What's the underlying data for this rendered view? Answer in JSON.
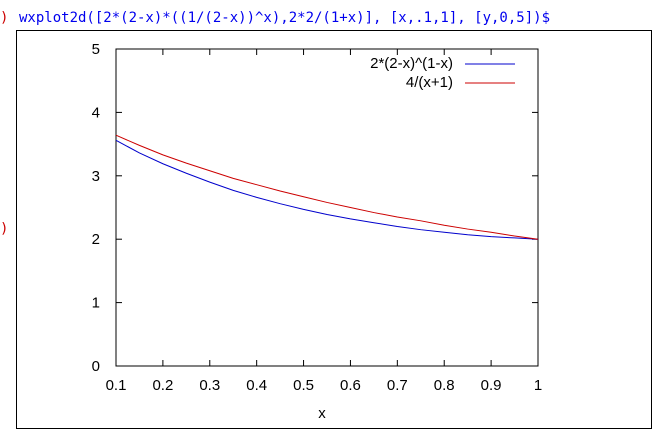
{
  "session": {
    "input_prompt": ")",
    "command": "wxplot2d([2*(2-x)*((1/(2-x))^x),2*2/(1+x)], [x,.1,1], [y,0,5])$",
    "output_prompt": ")"
  },
  "chart_data": {
    "type": "line",
    "xlabel": "x",
    "ylabel": "",
    "xlim": [
      0.1,
      1
    ],
    "ylim": [
      0,
      5
    ],
    "x_ticks": [
      "0.1",
      "0.2",
      "0.3",
      "0.4",
      "0.5",
      "0.6",
      "0.7",
      "0.8",
      "0.9",
      "1"
    ],
    "y_ticks": [
      "0",
      "1",
      "2",
      "3",
      "4",
      "5"
    ],
    "grid": false,
    "legend_position": "top-right",
    "x": [
      0.1,
      0.15,
      0.2,
      0.25,
      0.3,
      0.35,
      0.4,
      0.45,
      0.5,
      0.55,
      0.6,
      0.65,
      0.7,
      0.75,
      0.8,
      0.85,
      0.9,
      0.95,
      1.0
    ],
    "series": [
      {
        "name": "2*(2-x)^(1-x)",
        "color": "#0000cc",
        "values": [
          3.56,
          3.36,
          3.19,
          3.04,
          2.9,
          2.77,
          2.66,
          2.56,
          2.47,
          2.39,
          2.32,
          2.26,
          2.2,
          2.15,
          2.11,
          2.07,
          2.04,
          2.02,
          2.0
        ]
      },
      {
        "name": "4/(x+1)",
        "color": "#cc0000",
        "values": [
          3.64,
          3.48,
          3.33,
          3.2,
          3.08,
          2.96,
          2.86,
          2.76,
          2.67,
          2.58,
          2.5,
          2.42,
          2.35,
          2.29,
          2.22,
          2.16,
          2.11,
          2.05,
          2.0
        ]
      }
    ]
  }
}
